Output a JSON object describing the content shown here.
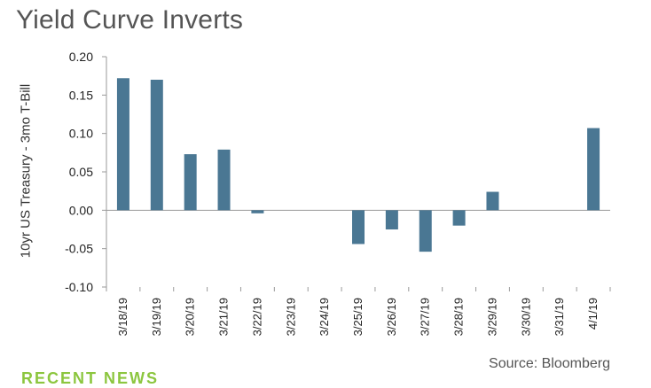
{
  "chart_data": {
    "type": "bar",
    "title": "Yield Curve Inverts",
    "ylabel": "10yr US Treasury - 3mo T-Bill",
    "xlabel": "",
    "ylim": [
      -0.1,
      0.2
    ],
    "yticks": [
      "0.20",
      "0.15",
      "0.10",
      "0.05",
      "0.00",
      "-0.05",
      "-0.10"
    ],
    "ytick_values": [
      0.2,
      0.15,
      0.1,
      0.05,
      0.0,
      -0.05,
      -0.1
    ],
    "categories": [
      "3/18/19",
      "3/19/19",
      "3/20/19",
      "3/21/19",
      "3/22/19",
      "3/23/19",
      "3/24/19",
      "3/25/19",
      "3/26/19",
      "3/27/19",
      "3/28/19",
      "3/29/19",
      "3/30/19",
      "3/31/19",
      "4/1/19"
    ],
    "values": [
      0.172,
      0.17,
      0.073,
      0.079,
      -0.004,
      null,
      null,
      -0.044,
      -0.025,
      -0.054,
      -0.02,
      0.024,
      null,
      null,
      0.107
    ],
    "bar_color": "#4a7793",
    "grid": false,
    "legend": "none",
    "source": "Source: Bloomberg"
  },
  "footer": {
    "section_heading": "RECENT NEWS"
  }
}
